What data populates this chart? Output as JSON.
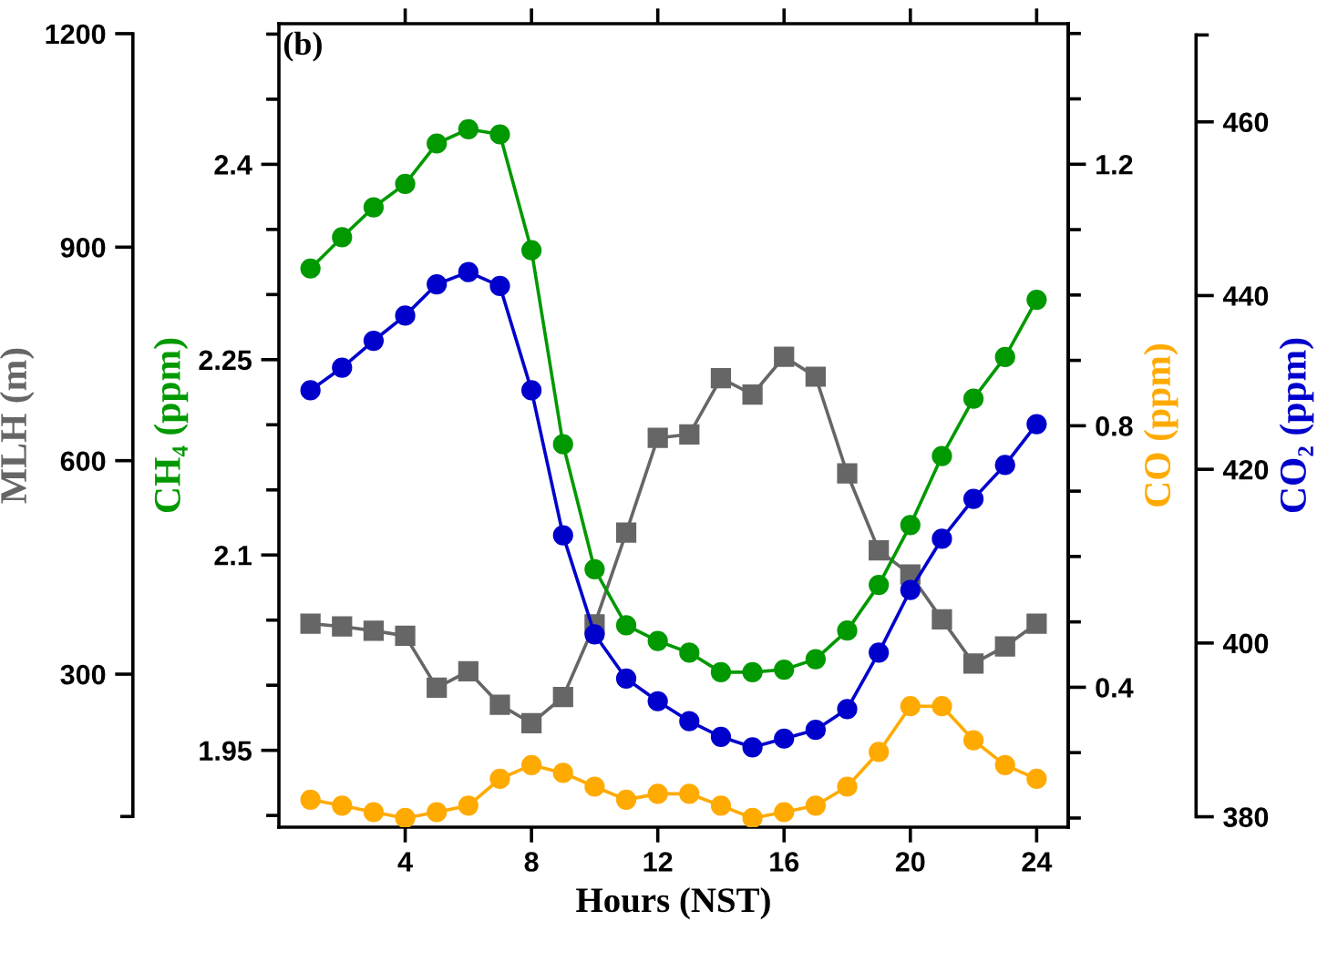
{
  "chart_data": [
    {
      "type": "line",
      "ylabel": "MLH (m)",
      "tick_labels": "y",
      "x": [
        1,
        2,
        3,
        4,
        5,
        6,
        7,
        8,
        9,
        10,
        11,
        12,
        13,
        14,
        15,
        16,
        17,
        18,
        19,
        20,
        21,
        22,
        23,
        24
      ],
      "xlim": [
        0,
        25
      ],
      "ylim": [
        85,
        1214
      ],
      "yticks": [
        {
          "value": 100,
          "label": null
        },
        300,
        600,
        900,
        1200
      ],
      "grid": false,
      "legend": false,
      "line_style": "solid",
      "series": [
        {
          "color": "#666666",
          "marker": "square",
          "values": [
            371,
            367,
            361,
            354,
            281,
            304,
            257,
            231,
            268,
            370,
            499,
            632,
            637,
            716,
            693,
            746,
            718,
            582,
            474,
            440,
            377,
            315,
            339,
            371
          ]
        }
      ]
    },
    {
      "type": "line",
      "xlabel": "Hours (NST)",
      "ylabel": "CH₄ (ppm)",
      "y2label": "CO (ppm)",
      "y3label": "CO₂ (ppm)",
      "annotations": [
        "(b)"
      ],
      "x": [
        1,
        2,
        3,
        4,
        5,
        6,
        7,
        8,
        9,
        10,
        11,
        12,
        13,
        14,
        15,
        16,
        17,
        18,
        19,
        20,
        21,
        22,
        23,
        24
      ],
      "xlim": [
        0,
        25
      ],
      "xticks": [
        4,
        8,
        12,
        16,
        20,
        24
      ],
      "ylim": [
        1.891,
        2.508
      ],
      "yticks": [
        {
          "value": 1.9,
          "label": null
        },
        1.95,
        {
          "value": 2.0,
          "label": null
        },
        {
          "value": 2.05,
          "label": null
        },
        2.1,
        {
          "value": 2.15,
          "label": null
        },
        {
          "value": 2.2,
          "label": null
        },
        2.25,
        {
          "value": 2.3,
          "label": null
        },
        {
          "value": 2.35,
          "label": null
        },
        2.4,
        {
          "value": 2.45,
          "label": null
        },
        {
          "value": 2.5,
          "label": null
        }
      ],
      "y2lim": [
        0.186,
        1.415
      ],
      "y2ticks": [
        {
          "value": 0.2,
          "label": null
        },
        {
          "value": 0.3,
          "label": null
        },
        0.4,
        {
          "value": 0.5,
          "label": null
        },
        {
          "value": 0.6,
          "label": null
        },
        {
          "value": 0.7,
          "label": null
        },
        0.8,
        {
          "value": 0.9,
          "label": null
        },
        {
          "value": 1.0,
          "label": null
        },
        {
          "value": 1.1,
          "label": null
        },
        1.2,
        {
          "value": 1.3,
          "label": null
        },
        {
          "value": 1.4,
          "label": null
        }
      ],
      "y3lim": [
        378.8,
        471.3
      ],
      "y3ticks": [
        380,
        400,
        420,
        440,
        460,
        {
          "value": 470,
          "label": null
        }
      ],
      "grid": false,
      "legend": false,
      "line_style": "solid",
      "series": [
        {
          "color": "#009900",
          "marker": "circle",
          "values": [
            2.32,
            2.344,
            2.367,
            2.385,
            2.416,
            2.427,
            2.423,
            2.334,
            2.185,
            2.089,
            2.046,
            2.034,
            2.025,
            2.01,
            2.01,
            2.012,
            2.02,
            2.042,
            2.077,
            2.123,
            2.176,
            2.22,
            2.252,
            2.296
          ]
        },
        {
          "axis": "y3",
          "color": "#0000cc",
          "marker": "circle",
          "values": [
            429.1,
            431.7,
            434.8,
            437.7,
            441.3,
            442.7,
            441.1,
            429.1,
            412.4,
            401.0,
            395.9,
            393.3,
            391.0,
            389.2,
            388.0,
            389.0,
            390.0,
            392.4,
            398.9,
            406.1,
            412.0,
            416.6,
            420.5,
            425.2
          ]
        },
        {
          "axis": "y2",
          "color": "#ffaa00",
          "marker": "circle",
          "values": [
            0.228,
            0.219,
            0.209,
            0.2,
            0.209,
            0.219,
            0.26,
            0.281,
            0.269,
            0.248,
            0.228,
            0.237,
            0.237,
            0.219,
            0.2,
            0.209,
            0.219,
            0.248,
            0.301,
            0.371,
            0.371,
            0.319,
            0.281,
            0.26
          ]
        }
      ]
    }
  ]
}
